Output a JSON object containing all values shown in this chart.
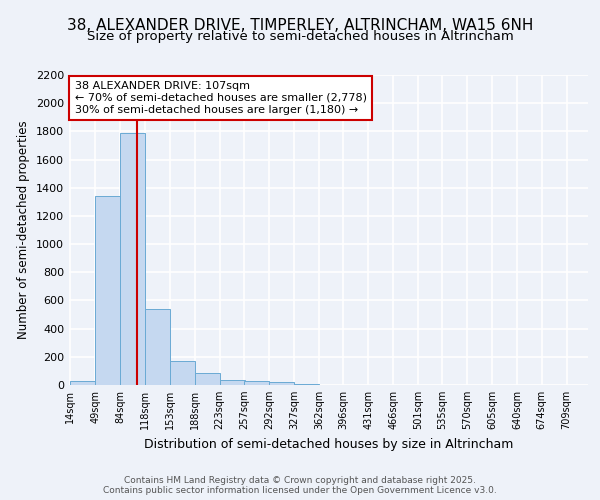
{
  "title1": "38, ALEXANDER DRIVE, TIMPERLEY, ALTRINCHAM, WA15 6NH",
  "title2": "Size of property relative to semi-detached houses in Altrincham",
  "xlabel": "Distribution of semi-detached houses by size in Altrincham",
  "ylabel": "Number of semi-detached properties",
  "bin_edges": [
    14,
    49,
    84,
    118,
    153,
    188,
    223,
    257,
    292,
    327,
    362,
    396,
    431,
    466,
    501,
    535,
    570,
    605,
    640,
    674,
    709
  ],
  "bar_heights": [
    30,
    1340,
    1790,
    540,
    170,
    85,
    35,
    25,
    18,
    10,
    0,
    0,
    0,
    0,
    0,
    0,
    0,
    0,
    0,
    0
  ],
  "bar_color": "#c5d8f0",
  "bar_edgecolor": "#6aaad4",
  "property_size": 107,
  "red_line_color": "#cc0000",
  "annotation_line1": "38 ALEXANDER DRIVE: 107sqm",
  "annotation_line2": "← 70% of semi-detached houses are smaller (2,778)",
  "annotation_line3": "30% of semi-detached houses are larger (1,180) →",
  "annotation_box_color": "#ffffff",
  "annotation_box_edgecolor": "#cc0000",
  "ylim": [
    0,
    2200
  ],
  "yticks": [
    0,
    200,
    400,
    600,
    800,
    1000,
    1200,
    1400,
    1600,
    1800,
    2000,
    2200
  ],
  "footer_text": "Contains HM Land Registry data © Crown copyright and database right 2025.\nContains public sector information licensed under the Open Government Licence v3.0.",
  "bg_color": "#eef2f9",
  "grid_color": "#ffffff",
  "title1_fontsize": 11,
  "title2_fontsize": 9.5,
  "annotation_fontsize": 8,
  "xlabel_fontsize": 9,
  "ylabel_fontsize": 8.5,
  "footer_fontsize": 6.5,
  "ytick_fontsize": 8,
  "xtick_fontsize": 7
}
